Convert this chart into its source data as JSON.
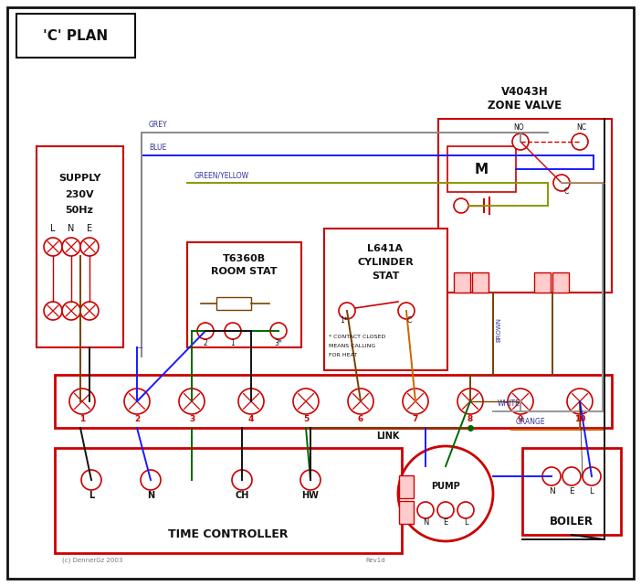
{
  "title": "'C' PLAN",
  "red": "#cc0000",
  "blue": "#1a1aff",
  "green": "#006600",
  "grey": "#888888",
  "brown": "#7B3F00",
  "orange": "#cc6600",
  "black": "#111111",
  "white_wire": "#999999",
  "green_yellow": "#889900",
  "label_color": "#333399",
  "supply_text": [
    "SUPPLY",
    "230V",
    "50Hz"
  ],
  "zone_valve_text": [
    "V4043H",
    "ZONE VALVE"
  ],
  "room_stat_text": [
    "T6360B",
    "ROOM STAT"
  ],
  "cyl_stat_text": [
    "L641A",
    "CYLINDER",
    "STAT"
  ],
  "terminal_labels": [
    "1",
    "2",
    "3",
    "4",
    "5",
    "6",
    "7",
    "8",
    "9",
    "10"
  ],
  "time_ctrl_text": "TIME CONTROLLER",
  "pump_text": "PUMP",
  "boiler_text": "BOILER",
  "link_text": "LINK",
  "tc_terminals": [
    "L",
    "N",
    "CH",
    "HW"
  ],
  "pump_terminals": [
    "N",
    "E",
    "L"
  ],
  "boiler_terminals": [
    "N",
    "E",
    "L"
  ],
  "copyright": "(c) DennerGz 2003",
  "revision": "Rev1d"
}
